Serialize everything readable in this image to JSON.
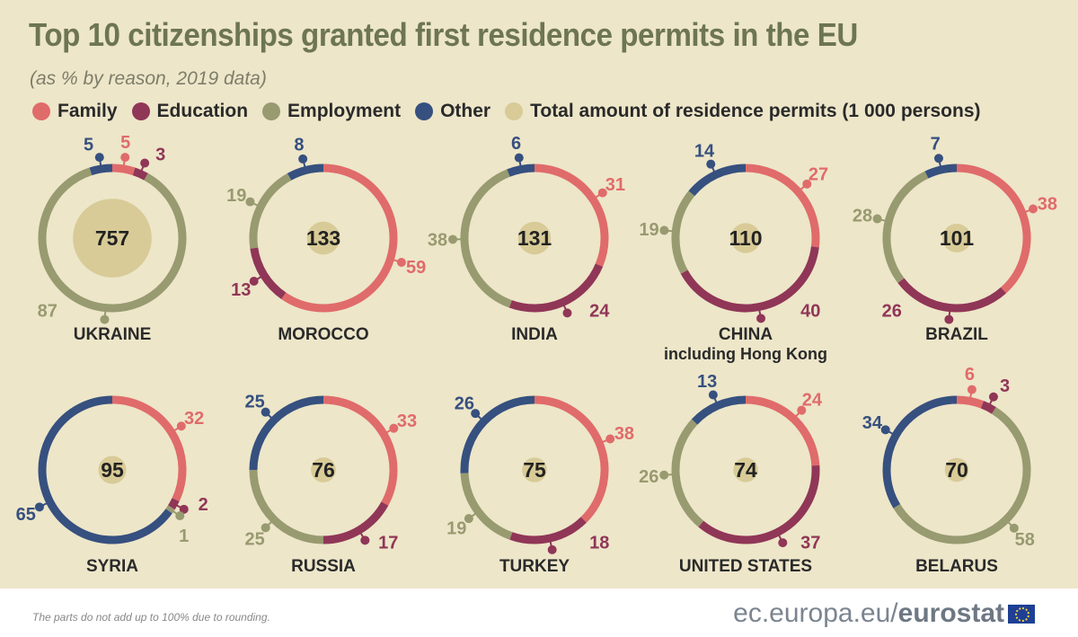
{
  "title": "Top 10 citizenships granted first residence permits in the EU",
  "subtitle": "(as % by reason, 2019 data)",
  "colors": {
    "family": "#e06b6b",
    "education": "#903657",
    "employment": "#989a70",
    "other": "#36507f",
    "total": "#d8cb97",
    "background": "#ede6c9"
  },
  "legend": [
    {
      "key": "family",
      "label": "Family"
    },
    {
      "key": "education",
      "label": "Education"
    },
    {
      "key": "employment",
      "label": "Employment"
    },
    {
      "key": "other",
      "label": "Other"
    },
    {
      "key": "total",
      "label": "Total amount of residence permits (1 000 persons)"
    }
  ],
  "chart_data": {
    "type": "donut",
    "title": "Top 10 citizenships granted first residence permits in the EU",
    "subtitle": "(as % by reason, 2019 data)",
    "segment_order": [
      "family",
      "education",
      "employment",
      "other"
    ],
    "unit_total": "1 000 persons",
    "unit_segments": "%",
    "countries": [
      {
        "name": "UKRAINE",
        "sub": "",
        "total": 757,
        "family": 5,
        "education": 3,
        "employment": 87,
        "other": 5
      },
      {
        "name": "MOROCCO",
        "sub": "",
        "total": 133,
        "family": 59,
        "education": 13,
        "employment": 19,
        "other": 8
      },
      {
        "name": "INDIA",
        "sub": "",
        "total": 131,
        "family": 31,
        "education": 24,
        "employment": 38,
        "other": 6
      },
      {
        "name": "CHINA",
        "sub": "including Hong Kong",
        "total": 110,
        "family": 27,
        "education": 40,
        "employment": 19,
        "other": 14
      },
      {
        "name": "BRAZIL",
        "sub": "",
        "total": 101,
        "family": 38,
        "education": 26,
        "employment": 28,
        "other": 7
      },
      {
        "name": "SYRIA",
        "sub": "",
        "total": 95,
        "family": 32,
        "education": 2,
        "employment": 1,
        "other": 65
      },
      {
        "name": "RUSSIA",
        "sub": "",
        "total": 76,
        "family": 33,
        "education": 17,
        "employment": 25,
        "other": 25
      },
      {
        "name": "TURKEY",
        "sub": "",
        "total": 75,
        "family": 38,
        "education": 18,
        "employment": 19,
        "other": 26
      },
      {
        "name": "UNITED STATES",
        "sub": "",
        "total": 74,
        "family": 24,
        "education": 37,
        "employment": 26,
        "other": 13
      },
      {
        "name": "BELARUS",
        "sub": "",
        "total": 70,
        "family": 6,
        "education": 3,
        "employment": 58,
        "other": 34
      }
    ]
  },
  "footnote": "The parts do not add up to 100% due to rounding.",
  "logo": {
    "prefix": "ec.europa.eu/",
    "brand": "eurostat"
  }
}
